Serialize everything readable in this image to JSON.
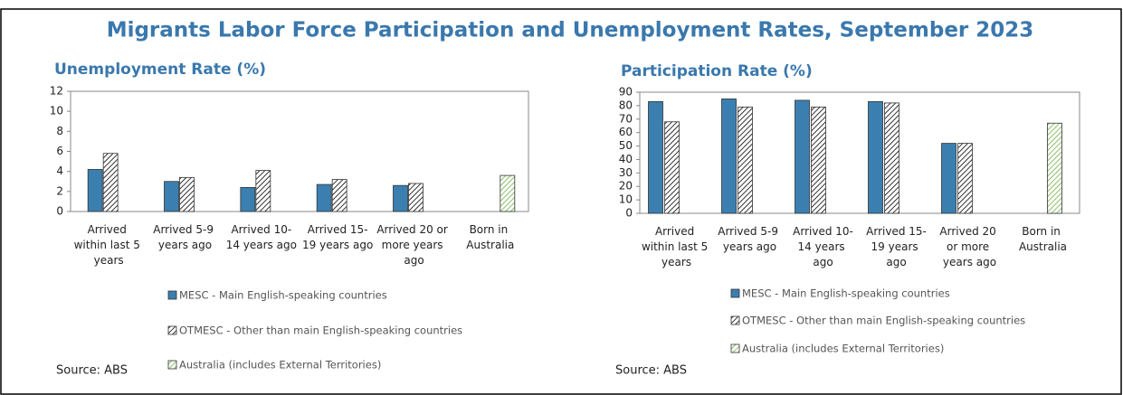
{
  "title": "Migrants Labor Force Participation and Unemployment Rates, September 2023",
  "chart_data": [
    {
      "type": "bar",
      "title": "Unemployment Rate (%)",
      "source": "Source: ABS",
      "categories": [
        "Arrived within last 5 years",
        "Arrived 5-9 years ago",
        "Arrived 10-14 years ago",
        "Arrived 15-19 years ago",
        "Arrived 20 or more years ago",
        "Born in Australia"
      ],
      "series": [
        {
          "name": "MESC - Main English-speaking countries",
          "color": "#3b7fb0",
          "hatch": false,
          "values": [
            4.2,
            3.0,
            2.4,
            2.7,
            2.6,
            null
          ]
        },
        {
          "name": "OTMESC - Other than main English-speaking countries",
          "color": "#000000",
          "hatch": true,
          "values": [
            5.8,
            3.4,
            4.1,
            3.2,
            2.8,
            null
          ]
        },
        {
          "name": "Australia (includes External Territories)",
          "color": "#70ad47",
          "hatch": true,
          "values": [
            null,
            null,
            null,
            null,
            null,
            3.6
          ]
        }
      ],
      "ylim": [
        0,
        12
      ],
      "yticks": [
        0,
        2,
        4,
        6,
        8,
        10,
        12
      ],
      "grid": false
    },
    {
      "type": "bar",
      "title": "Participation Rate (%)",
      "source": "Source: ABS",
      "categories": [
        "Arrived within last 5 years",
        "Arrived 5-9 years ago",
        "Arrived 10-14 years ago",
        "Arrived 15-19 years ago",
        "Arrived 20 or more years ago",
        "Born in Australia"
      ],
      "series": [
        {
          "name": "MESC - Main English-speaking countries",
          "color": "#3b7fb0",
          "hatch": false,
          "values": [
            83,
            85,
            84,
            83,
            52,
            null
          ]
        },
        {
          "name": "OTMESC - Other than main English-speaking countries",
          "color": "#000000",
          "hatch": true,
          "values": [
            68,
            79,
            79,
            82,
            52,
            null
          ]
        },
        {
          "name": "Australia (includes External Territories)",
          "color": "#70ad47",
          "hatch": true,
          "values": [
            null,
            null,
            null,
            null,
            null,
            67
          ]
        }
      ],
      "ylim": [
        0,
        90
      ],
      "yticks": [
        0,
        10,
        20,
        30,
        40,
        50,
        60,
        70,
        80,
        90
      ],
      "grid": false
    }
  ]
}
